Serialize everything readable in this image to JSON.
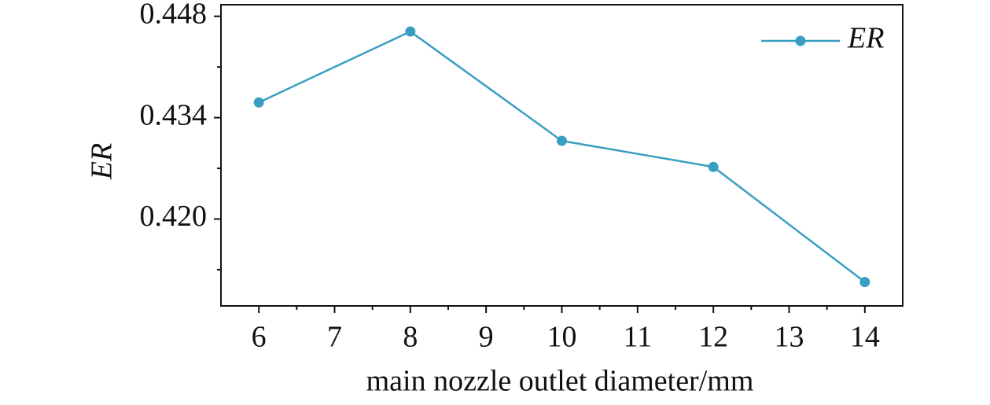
{
  "chart_data": {
    "type": "line",
    "x_label": "main nozzle outlet diameter/mm",
    "y_label": "ER",
    "x": [
      6,
      8,
      10,
      12,
      14
    ],
    "series": [
      {
        "name": "ER",
        "color": "#3a9ec3",
        "values": [
          0.4361,
          0.4459,
          0.4308,
          0.4272,
          0.4113
        ]
      }
    ],
    "xlim": [
      5.5,
      14.5
    ],
    "xticks": [
      6,
      7,
      8,
      9,
      10,
      11,
      12,
      13,
      14
    ],
    "xminor_ticks": [
      6.5,
      7.5,
      8.5,
      9.5,
      10.5,
      11.5,
      12.5,
      13.5
    ],
    "ylim": [
      0.408,
      0.4496
    ],
    "yticks": [
      0.448,
      {
        "value": 0.434,
        "label": "0.434"
      },
      {
        "value": 0.42,
        "label": "0.420"
      }
    ],
    "yminor_ticks": [
      0.441,
      0.427,
      0.413
    ],
    "legend": "top-right"
  }
}
